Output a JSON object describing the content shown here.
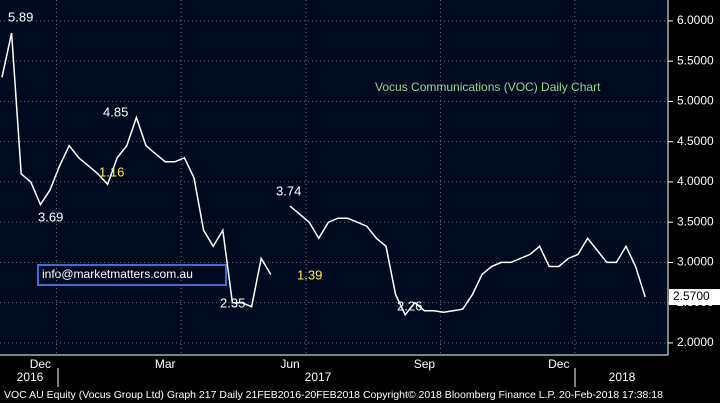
{
  "chart_data": {
    "type": "line",
    "title": "Vocus Communications (VOC) Daily Chart",
    "contact": "info@marketmatters.com.au",
    "footer": "VOC AU Equity (Vocus Group Ltd) Graph 217  Daily 21FEB2016-20FEB2018 Copyright© 2018 Bloomberg Finance L.P.  20-Feb-2018 17:38:18",
    "categories": [
      null,
      null,
      null,
      null,
      "Dec",
      null,
      null,
      null,
      null,
      null,
      null,
      null,
      null,
      null,
      null,
      null,
      null,
      "Mar",
      null,
      null,
      null,
      null,
      null,
      null,
      null,
      null,
      null,
      null,
      null,
      null,
      "Jun",
      null,
      null,
      null,
      null,
      null,
      null,
      null,
      null,
      null,
      null,
      null,
      null,
      null,
      "Sep",
      null,
      null,
      null,
      null,
      null,
      null,
      null,
      null,
      null,
      null,
      null,
      null,
      null,
      "Dec",
      null,
      null,
      null,
      null,
      null,
      null,
      null,
      null,
      null
    ],
    "year_labels": [
      "2016",
      "2017",
      "2018"
    ],
    "series": [
      {
        "name": "VOC",
        "color": "#ffffff",
        "values": [
          5.3,
          5.85,
          4.1,
          4.0,
          3.72,
          3.9,
          4.2,
          4.45,
          4.3,
          4.2,
          4.1,
          3.97,
          4.3,
          4.45,
          4.8,
          4.45,
          4.35,
          4.25,
          4.25,
          4.3,
          4.05,
          3.4,
          3.2,
          3.4,
          2.5,
          2.5,
          2.45,
          3.05,
          2.85,
          null,
          3.7,
          3.6,
          3.5,
          3.3,
          3.5,
          3.55,
          3.55,
          3.5,
          3.45,
          3.3,
          3.2,
          2.6,
          2.35,
          2.5,
          2.4,
          2.4,
          2.38,
          2.4,
          2.42,
          2.6,
          2.85,
          2.95,
          3.0,
          3.0,
          3.05,
          3.1,
          3.2,
          2.95,
          2.95,
          3.05,
          3.1,
          3.3,
          3.15,
          3.0,
          3.0,
          3.2,
          2.95,
          2.57
        ]
      }
    ],
    "last_price_label": "2.5700",
    "annotations": [
      "5.89",
      "3.69",
      "4.85",
      "1.16",
      "3.74",
      "1.39",
      "2.35",
      "2.26"
    ],
    "ylim": [
      1.85,
      6.26
    ],
    "yticks": [
      {
        "value": 2,
        "label": "2.0000"
      },
      {
        "value": 2.5,
        "label": "2.5000"
      },
      {
        "value": 3,
        "label": "3.0000"
      },
      {
        "value": 3.5,
        "label": "3.5000"
      },
      {
        "value": 4,
        "label": "4.0000"
      },
      {
        "value": 4.5,
        "label": "4.5000"
      },
      {
        "value": 5,
        "label": "5.0000"
      },
      {
        "value": 5.5,
        "label": "5.5000"
      },
      {
        "value": 6,
        "label": "6.0000"
      }
    ],
    "grid": true
  }
}
